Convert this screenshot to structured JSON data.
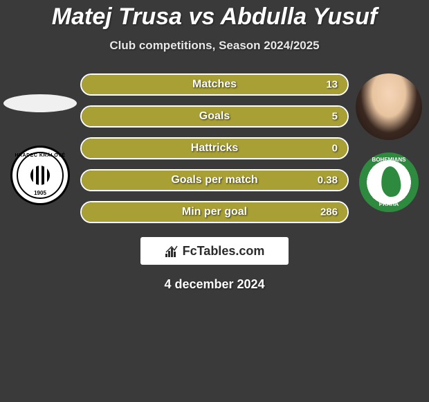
{
  "title": "Matej Trusa vs Abdulla Yusuf",
  "subtitle": "Club competitions, Season 2024/2025",
  "date": "4 december 2024",
  "brand": "FcTables.com",
  "colors": {
    "bar_fill": "#a8a035",
    "bar_border": "#ffffff",
    "background": "#3a3a3a"
  },
  "player_left": {
    "name": "Matej Trusa",
    "has_photo": false,
    "team": "FC Hradec Králové",
    "team_badge_text": "HRADEC KRÁLOVÉ",
    "team_year": "1905"
  },
  "player_right": {
    "name": "Abdulla Yusuf",
    "has_photo": true,
    "team": "Bohemians Praha",
    "team_badge_top": "BOHEMIANS",
    "team_badge_bottom": "PRAHA"
  },
  "stats": [
    {
      "label": "Matches",
      "left_value": "",
      "right_value": "13",
      "left_pct": 0,
      "right_pct": 100
    },
    {
      "label": "Goals",
      "left_value": "",
      "right_value": "5",
      "left_pct": 0,
      "right_pct": 100
    },
    {
      "label": "Hattricks",
      "left_value": "",
      "right_value": "0",
      "left_pct": 0,
      "right_pct": 100
    },
    {
      "label": "Goals per match",
      "left_value": "",
      "right_value": "0.38",
      "left_pct": 0,
      "right_pct": 100
    },
    {
      "label": "Min per goal",
      "left_value": "",
      "right_value": "286",
      "left_pct": 0,
      "right_pct": 100
    }
  ]
}
